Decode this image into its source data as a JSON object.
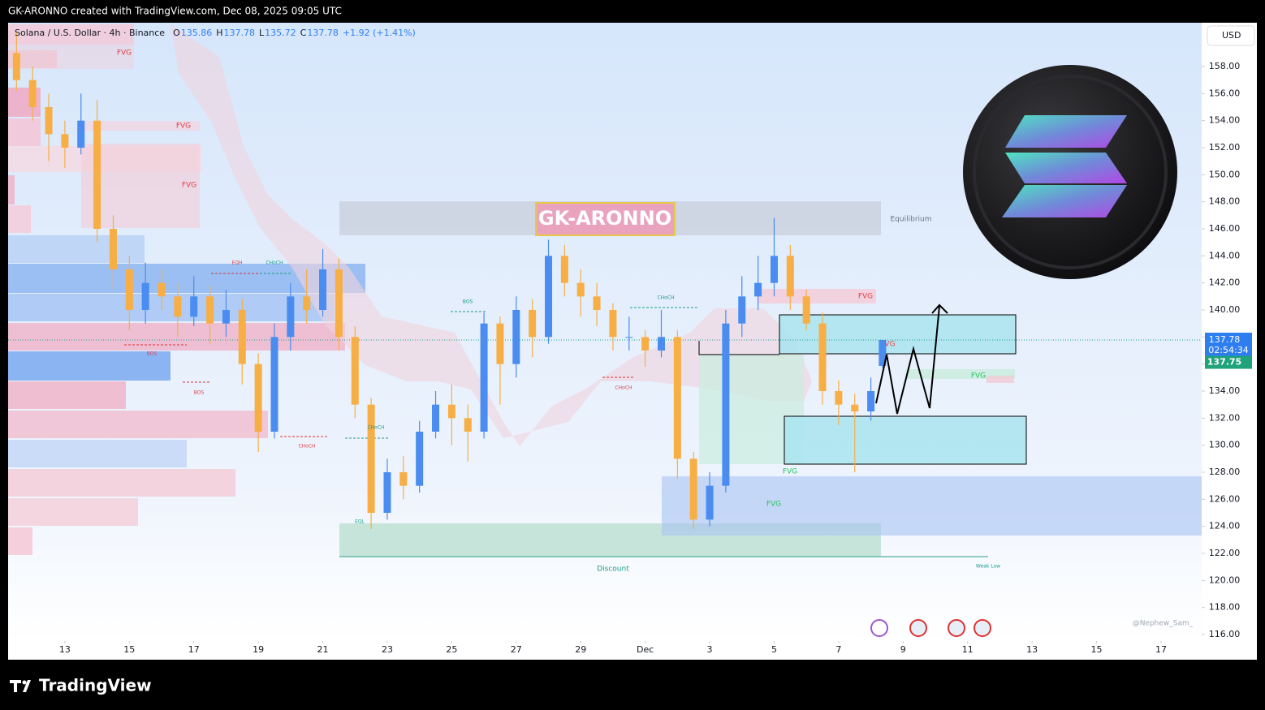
{
  "page_header": "GK-ARONNO created with TradingView.com, Dec 08, 2025 09:05 UTC",
  "footer_brand": "TradingView",
  "chart_data": {
    "type": "candlestick",
    "symbol": "Solana / U.S. Dollar · 4h · Binance",
    "ohlc_legend": [
      {
        "label": "O",
        "value": "135.86"
      },
      {
        "label": "H",
        "value": "137.78"
      },
      {
        "label": "L",
        "value": "135.72"
      },
      {
        "label": "C",
        "value": "137.78"
      }
    ],
    "change": "+1.92 (+1.41%)",
    "currency": "USD",
    "up_color": "#4a8cf0",
    "down_color": "#f7ae45",
    "x": [
      -1.5,
      -1,
      -0.5,
      0,
      0.5,
      1,
      1.5,
      2,
      2.5,
      3,
      3.5,
      4,
      4.5,
      5,
      5.5,
      6,
      6.5,
      7,
      7.5,
      8,
      8.5,
      9,
      9.5,
      10,
      10.5,
      11,
      11.5,
      12,
      12.5,
      13,
      13.5,
      14,
      14.5,
      15,
      15.5,
      16,
      16.5,
      17,
      17.5,
      18,
      18.5,
      19,
      19.5,
      20,
      20.5,
      21,
      21.5,
      22,
      22.5,
      23,
      23.5,
      24,
      24.5,
      25,
      25.36
    ],
    "open": [
      159,
      157,
      155,
      153,
      152,
      154,
      146,
      143,
      140,
      142,
      141,
      139.5,
      141,
      139,
      140,
      136,
      131,
      138,
      141,
      140,
      143,
      138,
      133,
      125,
      128,
      127,
      131,
      133,
      132,
      131,
      139,
      136,
      140,
      138,
      144,
      142,
      141,
      140,
      138,
      138,
      137,
      138,
      129,
      124.5,
      127,
      139,
      141,
      142,
      144,
      141,
      139,
      134,
      133,
      132.5,
      135.86
    ],
    "high": [
      160.5,
      158,
      156,
      154,
      156,
      155.5,
      147,
      144,
      143.5,
      143,
      142,
      142.5,
      141.8,
      141.5,
      140.8,
      136.8,
      139,
      142,
      143,
      144.5,
      143.8,
      138.8,
      133.5,
      129,
      129.2,
      131.8,
      134,
      134.5,
      133,
      139.8,
      139.5,
      141,
      140.8,
      145.2,
      144.8,
      143,
      142,
      140.5,
      139.5,
      138.5,
      140,
      138.5,
      129.5,
      128,
      140,
      142.5,
      144,
      146.8,
      144.8,
      141.5,
      139.8,
      134.8,
      133.8,
      135,
      137.78
    ],
    "low": [
      156.2,
      154,
      151,
      150.5,
      151.5,
      145,
      141.5,
      138.5,
      139,
      140,
      138,
      138.8,
      137.5,
      138,
      134.5,
      129.5,
      130.5,
      137,
      139,
      139.5,
      137,
      132,
      123.8,
      124.5,
      126,
      126.5,
      130.5,
      130,
      128.8,
      130.5,
      133,
      135,
      136.5,
      137.5,
      141,
      139.5,
      138.8,
      137,
      137,
      135.8,
      136.5,
      127.5,
      123.8,
      124,
      126.5,
      138,
      140,
      141,
      140,
      138.5,
      133,
      131.5,
      128,
      131.8,
      135.72
    ],
    "close": [
      157,
      155,
      153,
      152,
      154,
      146,
      143,
      140,
      142,
      141,
      139.5,
      141,
      139,
      140,
      136,
      131,
      138,
      141,
      140,
      143,
      138,
      133,
      125,
      128,
      127,
      131,
      133,
      132,
      131,
      139,
      136,
      140,
      138,
      144,
      142,
      141,
      140,
      138,
      138,
      137,
      138,
      129,
      124.5,
      127,
      139,
      141,
      142,
      144,
      141,
      139,
      134,
      133,
      132.5,
      134,
      137.78
    ],
    "xlim": [
      -1.76,
      35.26
    ],
    "xticks": [
      {
        "value": 0,
        "label": "13"
      },
      {
        "value": 2,
        "label": "15"
      },
      {
        "value": 4,
        "label": "17"
      },
      {
        "value": 6,
        "label": "19"
      },
      {
        "value": 8,
        "label": "21"
      },
      {
        "value": 10,
        "label": "23"
      },
      {
        "value": 12,
        "label": "25"
      },
      {
        "value": 14,
        "label": "27"
      },
      {
        "value": 16,
        "label": "29"
      },
      {
        "value": 18,
        "label": "Dec"
      },
      {
        "value": 20,
        "label": "3"
      },
      {
        "value": 22,
        "label": "5"
      },
      {
        "value": 24,
        "label": "7"
      },
      {
        "value": 26,
        "label": "9"
      },
      {
        "value": 28,
        "label": "11"
      },
      {
        "value": 30,
        "label": "13"
      },
      {
        "value": 32,
        "label": "15"
      },
      {
        "value": 34,
        "label": "17"
      }
    ],
    "ylim": [
      115.52,
      161.24
    ],
    "yticks": [
      {
        "value": 116,
        "label": "116.00"
      },
      {
        "value": 118,
        "label": "118.00"
      },
      {
        "value": 120,
        "label": "120.00"
      },
      {
        "value": 122,
        "label": "122.00"
      },
      {
        "value": 124,
        "label": "124.00"
      },
      {
        "value": 126,
        "label": "126.00"
      },
      {
        "value": 128,
        "label": "128.00"
      },
      {
        "value": 130,
        "label": "130.00"
      },
      {
        "value": 132,
        "label": "132.00"
      },
      {
        "value": 134,
        "label": "134.00"
      },
      {
        "value": 136,
        "label": "136.00"
      },
      {
        "value": 138,
        "label": "138.00"
      },
      {
        "value": 140,
        "label": "140.00"
      },
      {
        "value": 142,
        "label": "142.00"
      },
      {
        "value": 144,
        "label": "144.00"
      },
      {
        "value": 146,
        "label": "146.00"
      },
      {
        "value": 148,
        "label": "148.00"
      },
      {
        "value": 150,
        "label": "150.00"
      },
      {
        "value": 152,
        "label": "152.00"
      },
      {
        "value": 154,
        "label": "154.00"
      },
      {
        "value": 156,
        "label": "156.00"
      },
      {
        "value": 158,
        "label": "158.00"
      }
    ],
    "last_price": {
      "value": 137.78,
      "label": "137.78"
    },
    "countdown": "02:54:34",
    "second_price": {
      "value": 137.75,
      "label": "137.75"
    },
    "watermark": "GK-ARONNO",
    "credit": "@Nephew_Sam_",
    "annotations": [
      "FVG",
      "FVG",
      "FVG",
      "EQH",
      "CHoCH",
      "BOS",
      "BOS",
      "CHoCH",
      "CHoCH",
      "EQL",
      "BOS",
      "CHoCH",
      "CHoCH",
      "Equilibrium",
      "FVG",
      "VG",
      "FVG",
      "FVG",
      "FVG",
      "Discount",
      "Weak Low"
    ]
  }
}
